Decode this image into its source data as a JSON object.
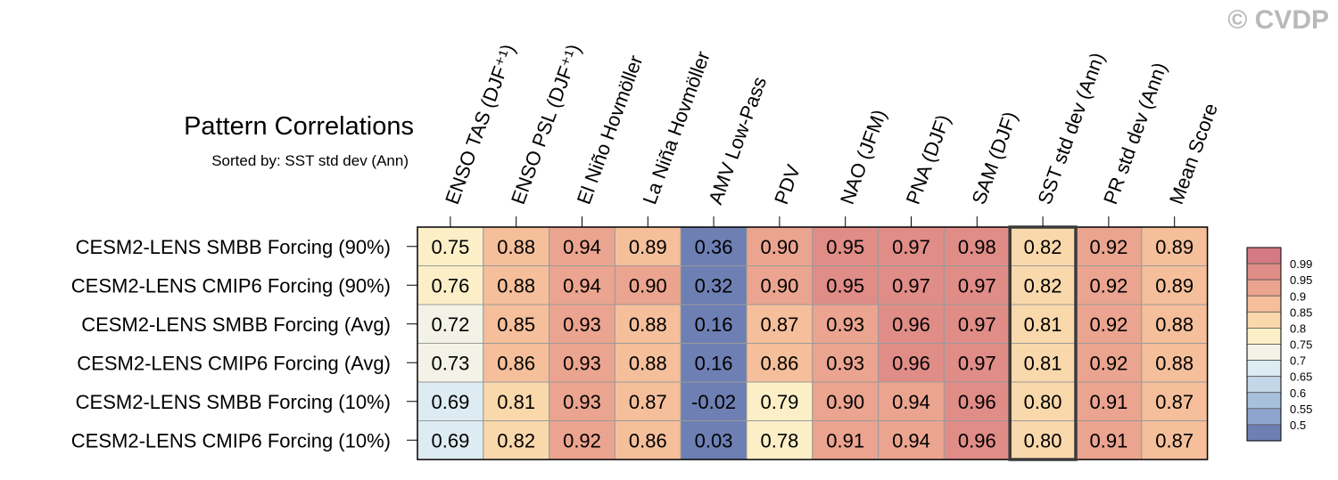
{
  "watermark": "© CVDP",
  "chart_data": {
    "type": "heatmap",
    "title": "Pattern Correlations",
    "subtitle": "Sorted by: SST std dev (Ann)",
    "columns": [
      "ENSO TAS (DJF⁺¹)",
      "ENSO PSL (DJF⁺¹)",
      "El Niño Hovmöller",
      "La Niña Hovmöller",
      "AMV Low-Pass",
      "PDV",
      "NAO (JFM)",
      "PNA (DJF)",
      "SAM (DJF)",
      "SST std dev (Ann)",
      "PR std dev (Ann)",
      "Mean Score"
    ],
    "rows": [
      "CESM2-LENS SMBB Forcing (90%)",
      "CESM2-LENS CMIP6 Forcing (90%)",
      "CESM2-LENS SMBB Forcing (Avg)",
      "CESM2-LENS CMIP6 Forcing (Avg)",
      "CESM2-LENS SMBB Forcing (10%)",
      "CESM2-LENS CMIP6 Forcing (10%)"
    ],
    "values": [
      [
        "0.75",
        "0.88",
        "0.94",
        "0.89",
        "0.36",
        "0.90",
        "0.95",
        "0.97",
        "0.98",
        "0.82",
        "0.92",
        "0.89"
      ],
      [
        "0.76",
        "0.88",
        "0.94",
        "0.90",
        "0.32",
        "0.90",
        "0.95",
        "0.97",
        "0.97",
        "0.82",
        "0.92",
        "0.89"
      ],
      [
        "0.72",
        "0.85",
        "0.93",
        "0.88",
        "0.16",
        "0.87",
        "0.93",
        "0.96",
        "0.97",
        "0.81",
        "0.92",
        "0.88"
      ],
      [
        "0.73",
        "0.86",
        "0.93",
        "0.88",
        "0.16",
        "0.86",
        "0.93",
        "0.96",
        "0.97",
        "0.81",
        "0.92",
        "0.88"
      ],
      [
        "0.69",
        "0.81",
        "0.93",
        "0.87",
        "-0.02",
        "0.79",
        "0.90",
        "0.94",
        "0.96",
        "0.80",
        "0.91",
        "0.87"
      ],
      [
        "0.69",
        "0.82",
        "0.92",
        "0.86",
        "0.03",
        "0.78",
        "0.91",
        "0.94",
        "0.96",
        "0.80",
        "0.91",
        "0.87"
      ]
    ],
    "highlighted_column": "SST std dev (Ann)",
    "colorbar": {
      "labels": [
        "0.99",
        "0.95",
        "0.9",
        "0.85",
        "0.8",
        "0.75",
        "0.7",
        "0.65",
        "0.6",
        "0.55",
        "0.5"
      ],
      "bounds": [
        0.5,
        0.55,
        0.6,
        0.65,
        0.7,
        0.75,
        0.8,
        0.85,
        0.9,
        0.95,
        0.99
      ],
      "colors": [
        "#6d7fb3",
        "#8ea5cf",
        "#a9c0dd",
        "#c3d7e8",
        "#ddebf2",
        "#f2f2e6",
        "#fcefc7",
        "#f9d8ab",
        "#f5bf9b",
        "#eba48f",
        "#e08c87",
        "#d57a84"
      ]
    }
  }
}
